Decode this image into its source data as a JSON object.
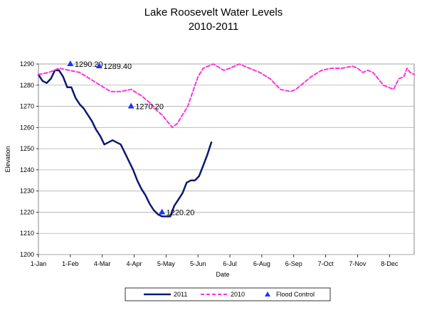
{
  "chart_data": {
    "type": "line",
    "title": "Lake Roosevelt Water Levels",
    "subtitle": "2010-2011",
    "xlabel": "Date",
    "ylabel": "Elevation",
    "ylim": [
      1200,
      1290
    ],
    "yticks": [
      1200,
      1210,
      1220,
      1230,
      1240,
      1250,
      1260,
      1270,
      1280,
      1290
    ],
    "xlim": [
      0,
      365
    ],
    "xticks": [
      {
        "day": 0,
        "label": "1-Jan"
      },
      {
        "day": 31,
        "label": "1-Feb"
      },
      {
        "day": 62,
        "label": "4-Mar"
      },
      {
        "day": 93,
        "label": "4-Apr"
      },
      {
        "day": 124,
        "label": "5-May"
      },
      {
        "day": 155,
        "label": "5-Jun"
      },
      {
        "day": 186,
        "label": "6-Jul"
      },
      {
        "day": 217,
        "label": "6-Aug"
      },
      {
        "day": 248,
        "label": "6-Sep"
      },
      {
        "day": 279,
        "label": "7-Oct"
      },
      {
        "day": 310,
        "label": "7-Nov"
      },
      {
        "day": 341,
        "label": "8-Dec"
      }
    ],
    "grid": true,
    "legend_position": "bottom",
    "series": [
      {
        "name": "2011",
        "color": "#0a1a6e",
        "style": "solid",
        "x": [
          0,
          4,
          8,
          12,
          16,
          20,
          24,
          28,
          32,
          36,
          40,
          44,
          48,
          52,
          56,
          60,
          64,
          68,
          72,
          76,
          80,
          84,
          88,
          92,
          96,
          100,
          104,
          108,
          112,
          116,
          120,
          124,
          128,
          132,
          136,
          140,
          144,
          148,
          152,
          156,
          160,
          164,
          168
        ],
        "y": [
          1285,
          1282,
          1281,
          1283,
          1287,
          1287,
          1284,
          1279,
          1279,
          1274,
          1271,
          1269,
          1266,
          1263,
          1259,
          1256,
          1252,
          1253,
          1254,
          1253,
          1252,
          1248,
          1244,
          1240,
          1235,
          1231,
          1228,
          1224,
          1221,
          1219,
          1218,
          1218,
          1218,
          1223,
          1226,
          1229,
          1234,
          1235,
          1235,
          1237,
          1242,
          1247,
          1253
        ]
      },
      {
        "name": "2010",
        "color": "#ff33dd",
        "style": "dashed",
        "x": [
          0,
          10,
          20,
          30,
          40,
          50,
          60,
          70,
          80,
          90,
          100,
          105,
          110,
          115,
          120,
          125,
          130,
          135,
          140,
          145,
          150,
          155,
          160,
          170,
          180,
          186,
          195,
          205,
          215,
          225,
          235,
          245,
          250,
          255,
          265,
          275,
          285,
          295,
          305,
          310,
          315,
          320,
          325,
          330,
          335,
          340,
          345,
          350,
          355,
          358,
          361,
          365
        ],
        "y": [
          1285,
          1286,
          1288,
          1287,
          1286,
          1283,
          1280,
          1277,
          1277,
          1278,
          1275,
          1273,
          1271,
          1268,
          1266,
          1263,
          1260,
          1262,
          1266,
          1270,
          1277,
          1284,
          1288,
          1290,
          1287,
          1288,
          1290,
          1288,
          1286,
          1283,
          1278,
          1277,
          1278,
          1280,
          1284,
          1287,
          1288,
          1288,
          1289,
          1288,
          1286,
          1287,
          1286,
          1283,
          1280,
          1279,
          1278,
          1283,
          1284,
          1288,
          1286,
          1285
        ]
      }
    ],
    "flood_control": {
      "name": "Flood Control",
      "color": "#1a33ff",
      "points": [
        {
          "day": 31,
          "value": 1290,
          "label": "1290.20"
        },
        {
          "day": 59,
          "value": 1289,
          "label": "1289.40"
        },
        {
          "day": 90,
          "value": 1270,
          "label": "1270.20"
        },
        {
          "day": 120,
          "value": 1220,
          "label": "1220.20"
        }
      ]
    }
  }
}
